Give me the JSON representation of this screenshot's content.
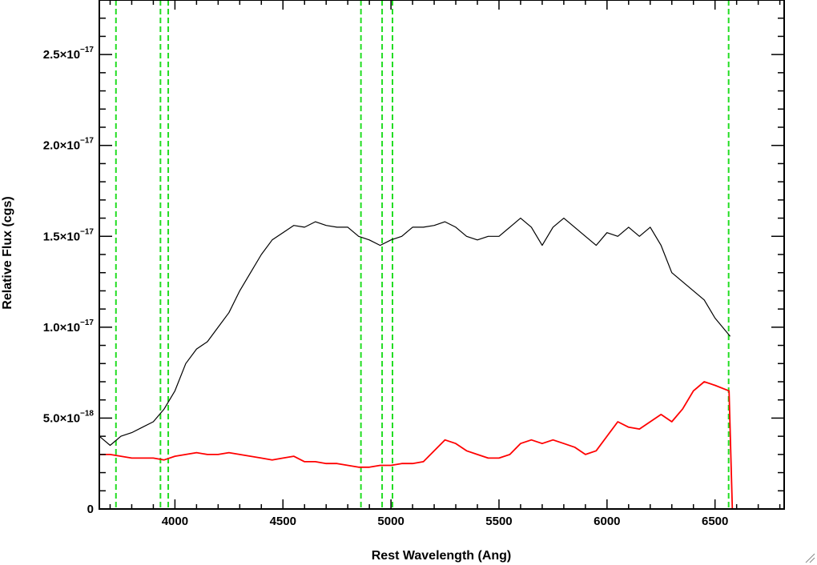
{
  "chart_data": {
    "type": "line",
    "title": "",
    "xlabel": "Rest Wavelength (Ang)",
    "ylabel": "Relative Flux (cgs)",
    "xlim": [
      3650,
      6820
    ],
    "ylim": [
      0,
      2.8e-17
    ],
    "x_ticks": [
      {
        "value": 4000,
        "label": "4000"
      },
      {
        "value": 4500,
        "label": "4500"
      },
      {
        "value": 5000,
        "label": "5000"
      },
      {
        "value": 5500,
        "label": "5500"
      },
      {
        "value": 6000,
        "label": "6000"
      },
      {
        "value": 6500,
        "label": "6500"
      }
    ],
    "y_ticks": [
      {
        "value": 0,
        "mantissa": "0",
        "exponent": ""
      },
      {
        "value": 5e-18,
        "mantissa": "5.0×10",
        "exponent": "−18"
      },
      {
        "value": 1e-17,
        "mantissa": "1.0×10",
        "exponent": "−17"
      },
      {
        "value": 1.5e-17,
        "mantissa": "1.5×10",
        "exponent": "−17"
      },
      {
        "value": 2e-17,
        "mantissa": "2.0×10",
        "exponent": "−17"
      },
      {
        "value": 2.5e-17,
        "mantissa": "2.5×10",
        "exponent": "−17"
      }
    ],
    "vertical_lines": [
      3727,
      3933,
      3969,
      4861,
      4959,
      5007,
      6563
    ],
    "series": [
      {
        "color": "#000000",
        "x": [
          3650,
          3700,
          3750,
          3800,
          3850,
          3900,
          3950,
          4000,
          4050,
          4100,
          4150,
          4200,
          4250,
          4300,
          4350,
          4400,
          4450,
          4500,
          4550,
          4600,
          4650,
          4700,
          4750,
          4800,
          4850,
          4900,
          4950,
          5000,
          5050,
          5100,
          5150,
          5200,
          5250,
          5300,
          5350,
          5400,
          5450,
          5500,
          5550,
          5600,
          5650,
          5700,
          5750,
          5800,
          5850,
          5900,
          5950,
          6000,
          6050,
          6100,
          6150,
          6200,
          6250,
          6300,
          6350,
          6400,
          6450,
          6500,
          6570
        ],
        "y": [
          4e-18,
          3.5e-18,
          4e-18,
          4.2e-18,
          4.5e-18,
          4.8e-18,
          5.5e-18,
          6.5e-18,
          8e-18,
          8.8e-18,
          9.2e-18,
          1e-17,
          1.08e-17,
          1.2e-17,
          1.3e-17,
          1.4e-17,
          1.48e-17,
          1.52e-17,
          1.56e-17,
          1.55e-17,
          1.58e-17,
          1.56e-17,
          1.55e-17,
          1.55e-17,
          1.5e-17,
          1.48e-17,
          1.45e-17,
          1.48e-17,
          1.5e-17,
          1.55e-17,
          1.55e-17,
          1.56e-17,
          1.58e-17,
          1.55e-17,
          1.5e-17,
          1.48e-17,
          1.5e-17,
          1.5e-17,
          1.55e-17,
          1.6e-17,
          1.55e-17,
          1.45e-17,
          1.55e-17,
          1.6e-17,
          1.55e-17,
          1.5e-17,
          1.45e-17,
          1.52e-17,
          1.5e-17,
          1.55e-17,
          1.5e-17,
          1.55e-17,
          1.45e-17,
          1.3e-17,
          1.25e-17,
          1.2e-17,
          1.15e-17,
          1.05e-17,
          9.5e-18
        ]
      },
      {
        "color": "#ff0000",
        "x": [
          3650,
          3700,
          3750,
          3800,
          3850,
          3900,
          3950,
          4000,
          4050,
          4100,
          4150,
          4200,
          4250,
          4300,
          4350,
          4400,
          4450,
          4500,
          4550,
          4600,
          4650,
          4700,
          4750,
          4800,
          4850,
          4900,
          4950,
          5000,
          5050,
          5100,
          5150,
          5200,
          5250,
          5300,
          5350,
          5400,
          5450,
          5500,
          5550,
          5600,
          5650,
          5700,
          5750,
          5800,
          5850,
          5900,
          5950,
          6000,
          6050,
          6100,
          6150,
          6200,
          6250,
          6300,
          6350,
          6400,
          6450,
          6500,
          6565,
          6580,
          6820
        ],
        "y": [
          3e-18,
          3e-18,
          2.9e-18,
          2.8e-18,
          2.8e-18,
          2.8e-18,
          2.7e-18,
          2.9e-18,
          3e-18,
          3.1e-18,
          3e-18,
          3e-18,
          3.1e-18,
          3e-18,
          2.9e-18,
          2.8e-18,
          2.7e-18,
          2.8e-18,
          2.9e-18,
          2.6e-18,
          2.6e-18,
          2.5e-18,
          2.5e-18,
          2.4e-18,
          2.3e-18,
          2.3e-18,
          2.4e-18,
          2.4e-18,
          2.5e-18,
          2.5e-18,
          2.6e-18,
          3.2e-18,
          3.8e-18,
          3.6e-18,
          3.2e-18,
          3e-18,
          2.8e-18,
          2.8e-18,
          3e-18,
          3.6e-18,
          3.8e-18,
          3.6e-18,
          3.8e-18,
          3.6e-18,
          3.4e-18,
          3e-18,
          3.2e-18,
          4e-18,
          4.8e-18,
          4.5e-18,
          4.4e-18,
          4.8e-18,
          5.2e-18,
          4.8e-18,
          5.5e-18,
          6.5e-18,
          7e-18,
          6.8e-18,
          6.5e-18,
          0,
          0
        ]
      }
    ]
  }
}
